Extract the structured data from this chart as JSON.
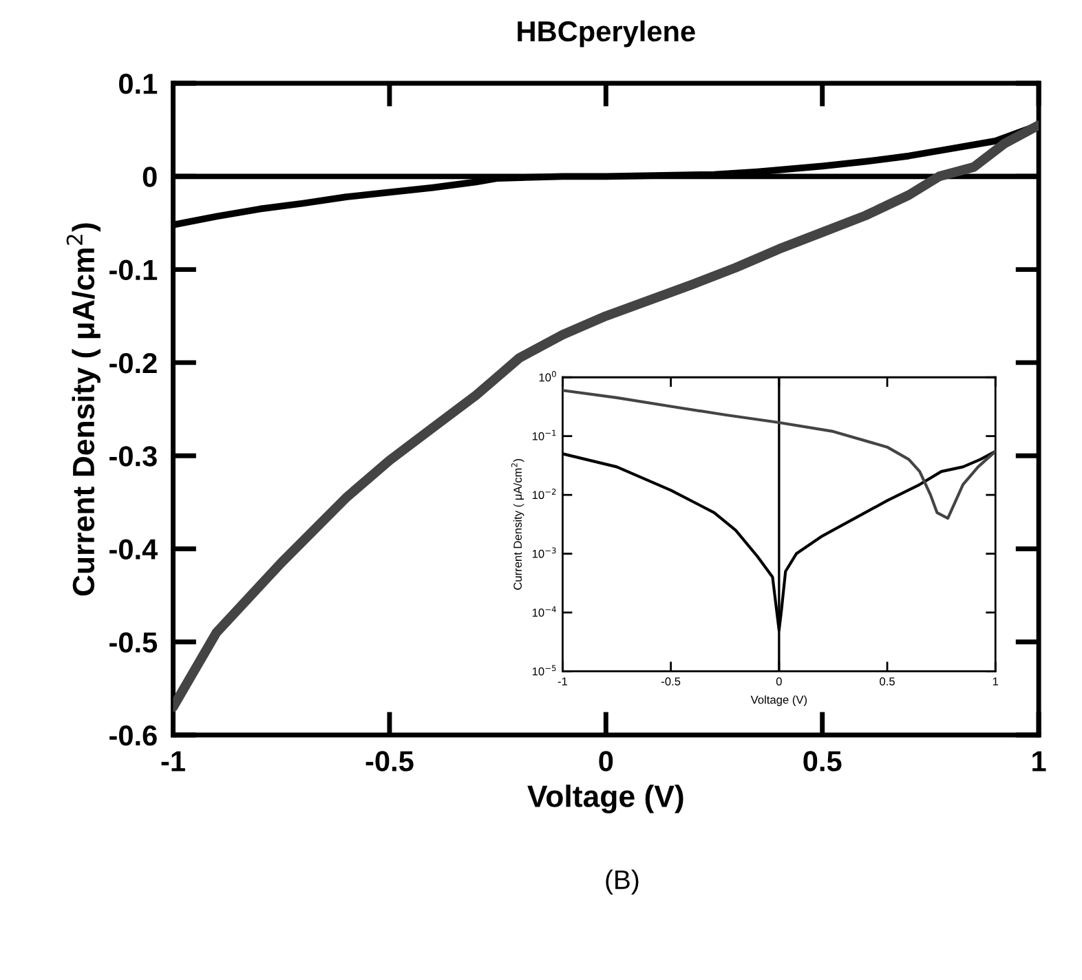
{
  "chart_data": [
    {
      "type": "line",
      "title": "HBCperylene",
      "xlabel": "Voltage (V)",
      "ylabel": "Current Density ( μA/cm$^{2}$)",
      "annotations": [
        "(B)"
      ],
      "xlim": [
        -1,
        1
      ],
      "ylim": [
        -0.6,
        0.1
      ],
      "xticks": [
        -1,
        -0.5,
        0,
        0.5,
        1
      ],
      "yticks": [
        -0.6,
        -0.5,
        -0.4,
        -0.3,
        -0.2,
        -0.1,
        0,
        0.1
      ],
      "grid": false,
      "legend": false,
      "marker": "none",
      "line_style": "solid",
      "ref_lines": [
        {
          "axis": "y",
          "value": 0,
          "color": "#000000"
        }
      ],
      "series": [
        {
          "color": "#000000",
          "x": [
            -1,
            -0.9,
            -0.8,
            -0.7,
            -0.6,
            -0.5,
            -0.4,
            -0.3,
            -0.25,
            -0.1,
            0,
            0.25,
            0.35,
            0.5,
            0.6,
            0.7,
            0.8,
            0.9,
            1
          ],
          "values": [
            -0.052,
            -0.043,
            -0.035,
            -0.029,
            -0.022,
            -0.017,
            -0.012,
            -0.006,
            -0.002,
            0.0,
            0.0,
            0.002,
            0.005,
            0.011,
            0.016,
            0.022,
            0.03,
            0.038,
            0.055
          ]
        },
        {
          "color": "#444444",
          "x": [
            -1,
            -0.9,
            -0.8,
            -0.75,
            -0.6,
            -0.5,
            -0.4,
            -0.3,
            -0.25,
            -0.2,
            -0.1,
            0,
            0.1,
            0.2,
            0.3,
            0.4,
            0.5,
            0.6,
            0.7,
            0.77,
            0.85,
            0.92,
            1
          ],
          "values": [
            -0.57,
            -0.49,
            -0.44,
            -0.415,
            -0.345,
            -0.305,
            -0.27,
            -0.235,
            -0.215,
            -0.195,
            -0.17,
            -0.15,
            -0.133,
            -0.116,
            -0.098,
            -0.078,
            -0.06,
            -0.042,
            -0.02,
            0.0,
            0.01,
            0.035,
            0.055
          ]
        }
      ]
    },
    {
      "type": "line",
      "xlabel": "Voltage (V)",
      "ylabel": "Current Density ( μA/cm$^{2}$)",
      "log": "y",
      "xlim": [
        -1,
        1
      ],
      "ylim": [
        1e-05,
        1
      ],
      "xticks": [
        -1,
        -0.5,
        0,
        0.5,
        1
      ],
      "yticks": [
        {
          "value": 1e-05,
          "label": "10$^{−5}$"
        },
        {
          "value": 0.0001,
          "label": "10$^{−4}$"
        },
        {
          "value": 0.001,
          "label": "10$^{−3}$"
        },
        {
          "value": 0.01,
          "label": "10$^{−2}$"
        },
        {
          "value": 0.1,
          "label": "10$^{−1}$"
        },
        {
          "value": 1,
          "label": "10$^{0}$"
        }
      ],
      "grid": false,
      "legend": false,
      "marker": "none",
      "line_style": "solid",
      "ref_lines": [
        {
          "axis": "x",
          "value": 0,
          "color": "#000000"
        }
      ],
      "series": [
        {
          "color": "#000000",
          "x": [
            -1,
            -0.75,
            -0.5,
            -0.3,
            -0.2,
            -0.1,
            -0.03,
            -0.01,
            0,
            0.01,
            0.03,
            0.08,
            0.2,
            0.35,
            0.5,
            0.65,
            0.75,
            0.85,
            0.93,
            1
          ],
          "values": [
            0.05,
            0.03,
            0.012,
            0.005,
            0.0025,
            0.0009,
            0.0004,
            0.0001,
            5e-05,
            0.0001,
            0.0005,
            0.001,
            0.002,
            0.004,
            0.008,
            0.015,
            0.025,
            0.03,
            0.04,
            0.055
          ]
        },
        {
          "color": "#444444",
          "x": [
            -1,
            -0.75,
            -0.5,
            -0.25,
            0,
            0.25,
            0.5,
            0.6,
            0.65,
            0.7,
            0.73,
            0.78,
            0.85,
            0.92,
            1
          ],
          "values": [
            0.6,
            0.45,
            0.32,
            0.23,
            0.17,
            0.12,
            0.065,
            0.04,
            0.025,
            0.01,
            0.005,
            0.004,
            0.015,
            0.03,
            0.055
          ]
        }
      ]
    }
  ]
}
